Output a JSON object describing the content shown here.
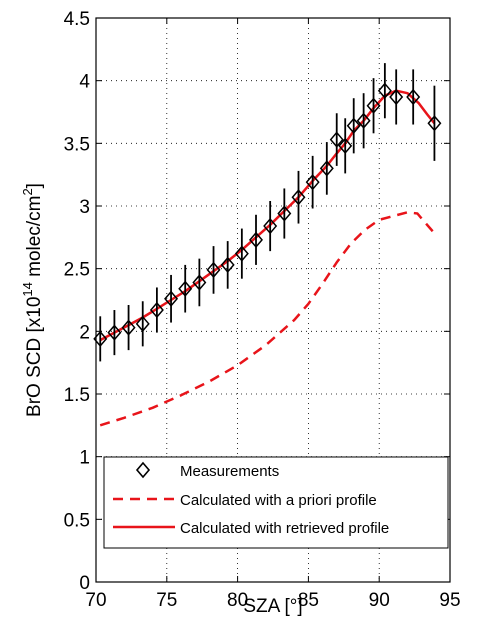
{
  "chart_data": {
    "type": "line",
    "title": "",
    "xlabel": "SZA [°]",
    "ylabel_parts": {
      "pre": "BrO SCD [x10",
      "exp1": "14",
      "mid": " molec/cm",
      "exp2": "2",
      "post": "]"
    },
    "xlim": [
      70,
      95
    ],
    "ylim": [
      0,
      4.5
    ],
    "xticks": [
      "70",
      "75",
      "80",
      "85",
      "90",
      "95"
    ],
    "yticks": [
      "0",
      "0.5",
      "1",
      "1.5",
      "2",
      "2.5",
      "3",
      "3.5",
      "4",
      "4.5"
    ],
    "grid": true,
    "legend_position": "bottom-left",
    "series": [
      {
        "name": "Measurements",
        "style": "diamond-markers-with-errorbars",
        "color": "#000000",
        "x": [
          70.3,
          71.3,
          72.3,
          73.3,
          74.3,
          75.3,
          76.3,
          77.3,
          78.3,
          79.3,
          80.3,
          81.3,
          82.3,
          83.3,
          84.3,
          85.3,
          86.3,
          87.0,
          87.6,
          88.2,
          88.9,
          89.6,
          90.4,
          91.2,
          92.4,
          93.9
        ],
        "y": [
          1.94,
          1.99,
          2.03,
          2.06,
          2.17,
          2.26,
          2.34,
          2.39,
          2.49,
          2.53,
          2.62,
          2.73,
          2.84,
          2.94,
          3.07,
          3.19,
          3.3,
          3.53,
          3.48,
          3.64,
          3.68,
          3.8,
          3.92,
          3.87,
          3.87,
          3.66
        ],
        "err": [
          0.18,
          0.18,
          0.18,
          0.18,
          0.18,
          0.19,
          0.19,
          0.19,
          0.19,
          0.19,
          0.2,
          0.2,
          0.2,
          0.2,
          0.21,
          0.21,
          0.21,
          0.21,
          0.22,
          0.22,
          0.22,
          0.22,
          0.22,
          0.22,
          0.22,
          0.3
        ]
      },
      {
        "name": "Calculated with a priori profile",
        "style": "dashed",
        "color": "#e8141a",
        "x": [
          70.3,
          72.0,
          74.0,
          76.0,
          78.0,
          80.0,
          82.0,
          84.0,
          85.0,
          86.0,
          87.0,
          88.0,
          89.0,
          90.0,
          91.0,
          92.0,
          92.7,
          93.3,
          94.0
        ],
        "y": [
          1.25,
          1.31,
          1.39,
          1.49,
          1.6,
          1.73,
          1.89,
          2.09,
          2.22,
          2.38,
          2.55,
          2.7,
          2.81,
          2.89,
          2.92,
          2.95,
          2.94,
          2.86,
          2.77
        ]
      },
      {
        "name": "Calculated with retrieved profile",
        "style": "solid",
        "color": "#e8141a",
        "x": [
          70.3,
          71.3,
          72.3,
          73.3,
          74.3,
          75.3,
          76.3,
          77.3,
          78.3,
          79.3,
          80.3,
          81.3,
          82.3,
          83.3,
          84.3,
          85.3,
          86.3,
          87.0,
          87.6,
          88.2,
          88.9,
          89.6,
          90.4,
          91.2,
          92.0,
          92.8,
          93.4,
          93.9
        ],
        "y": [
          1.93,
          1.99,
          2.05,
          2.11,
          2.18,
          2.25,
          2.32,
          2.4,
          2.48,
          2.56,
          2.65,
          2.75,
          2.85,
          2.96,
          3.07,
          3.2,
          3.32,
          3.42,
          3.5,
          3.6,
          3.68,
          3.78,
          3.88,
          3.92,
          3.9,
          3.82,
          3.73,
          3.66
        ]
      }
    ]
  }
}
